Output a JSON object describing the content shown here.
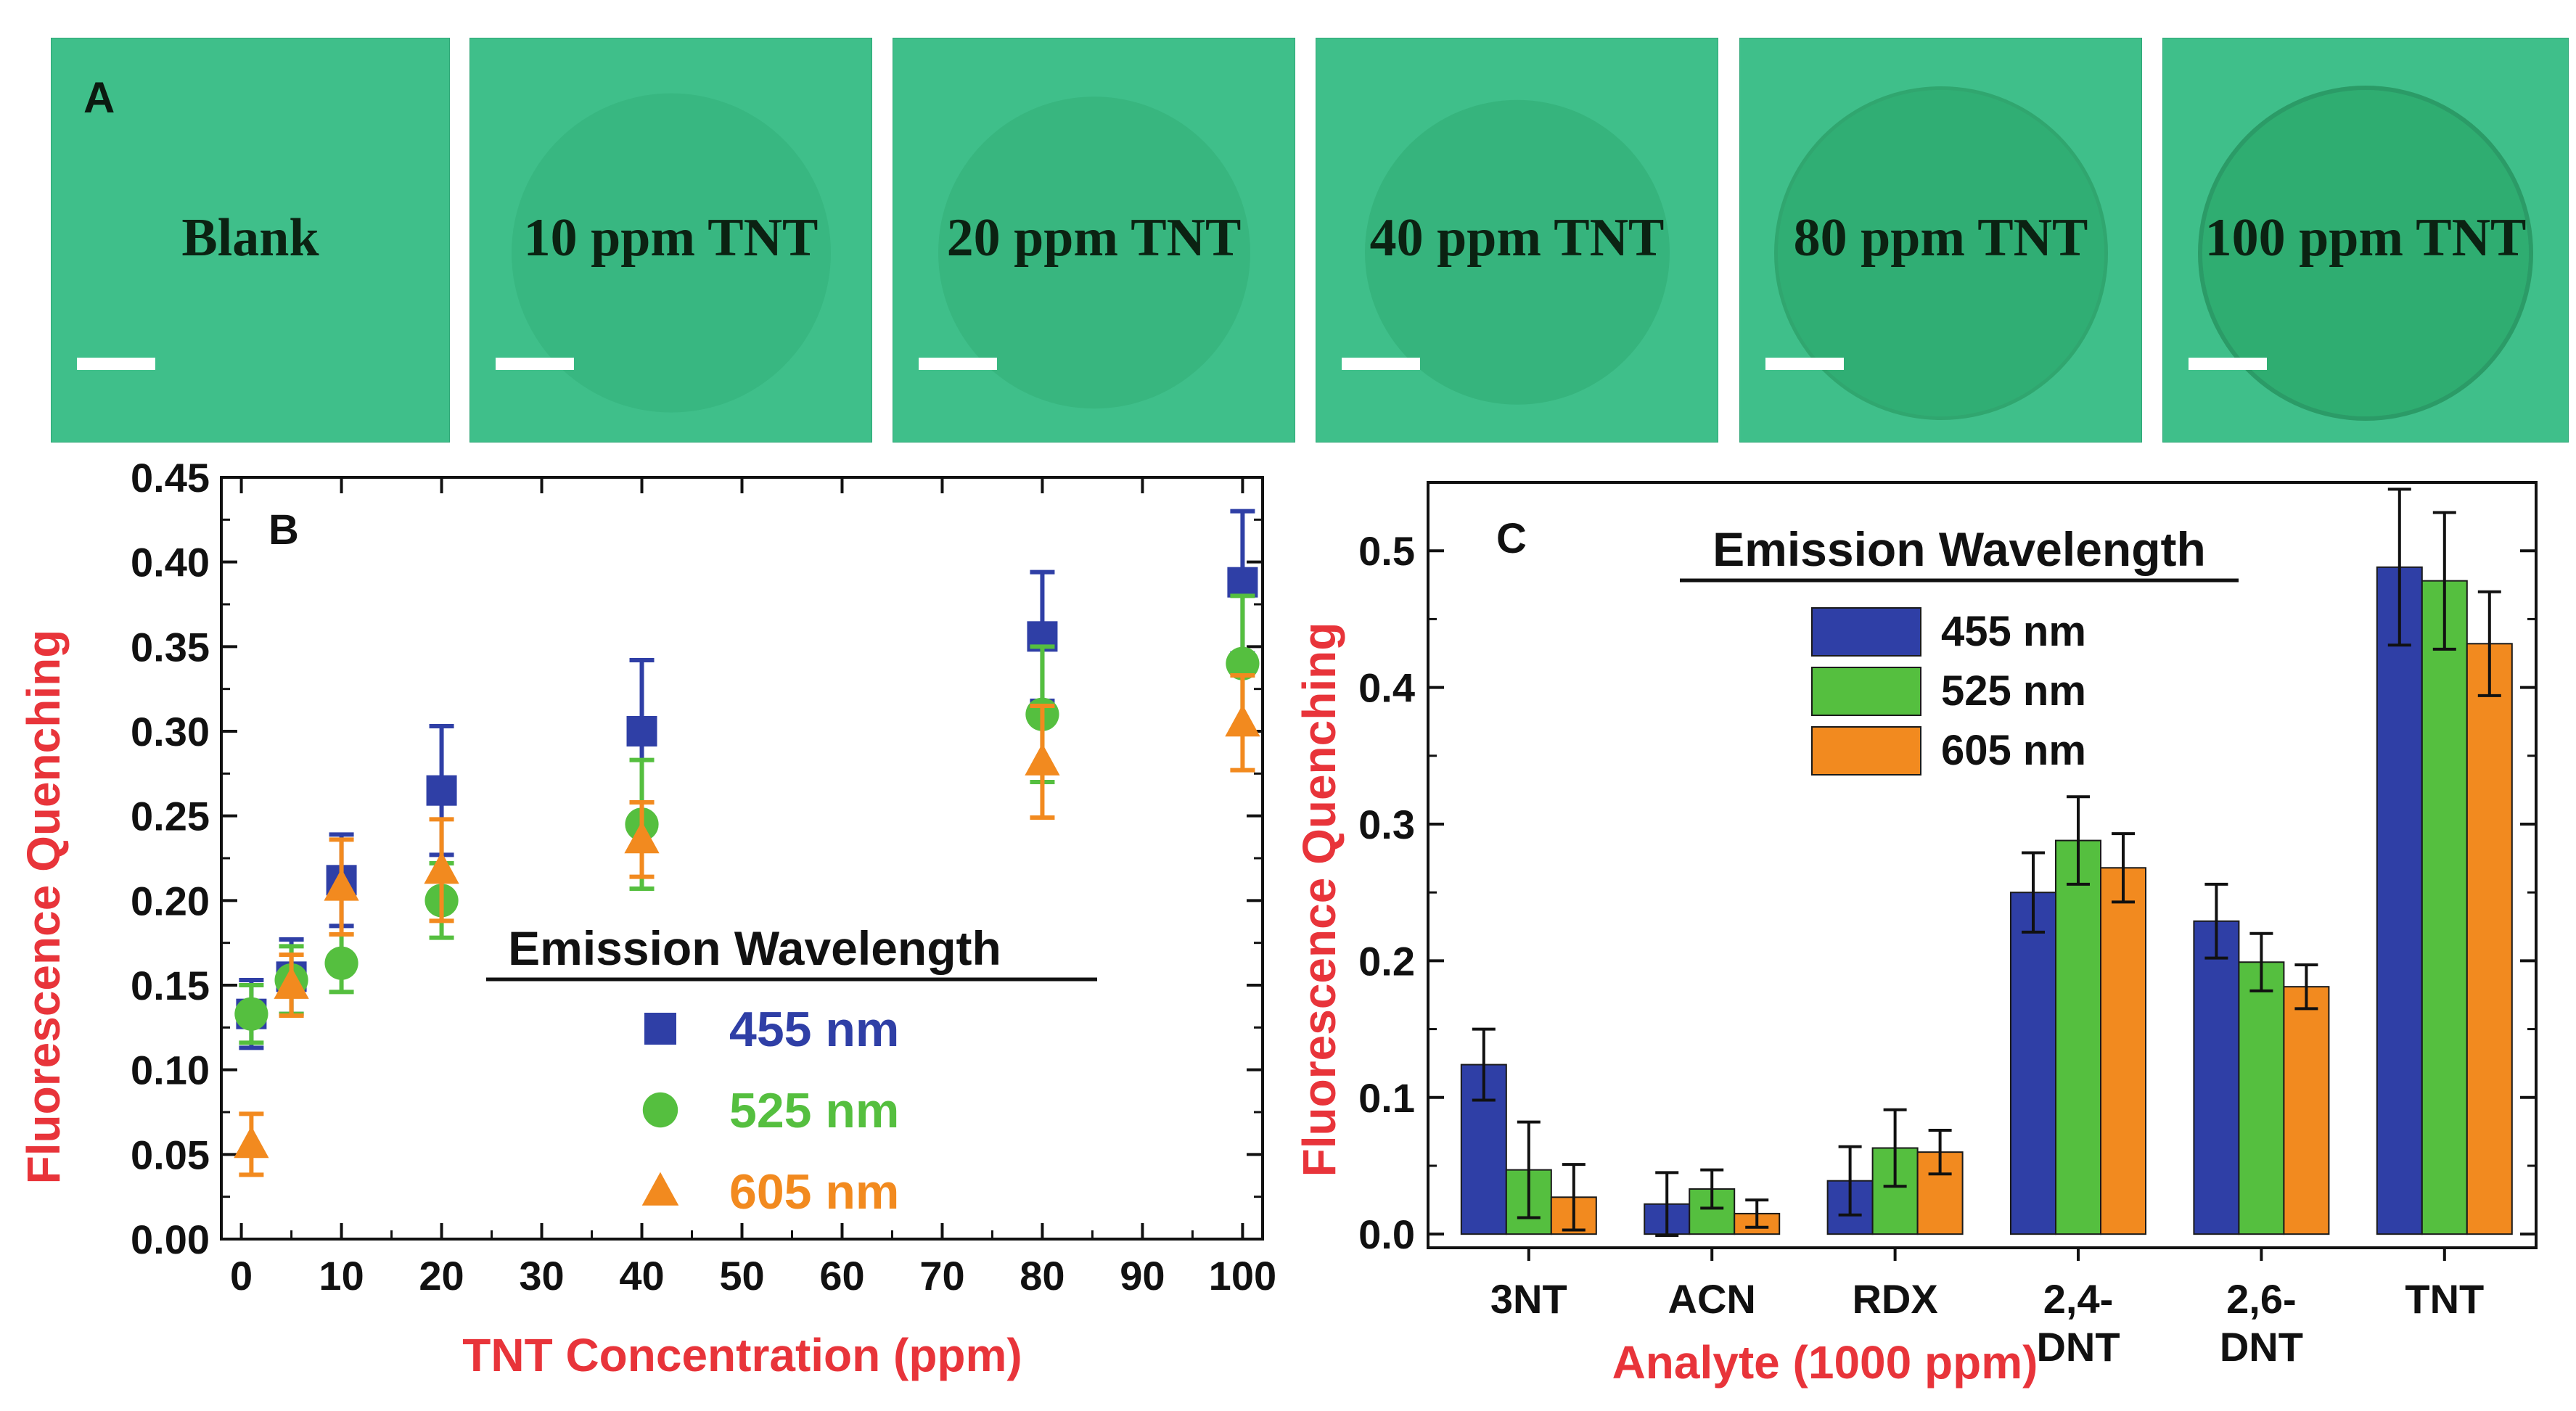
{
  "panel_a": {
    "letter": "A",
    "tiles": [
      {
        "label": "Blank"
      },
      {
        "label": "10 ppm TNT"
      },
      {
        "label": "20 ppm TNT"
      },
      {
        "label": "40 ppm TNT"
      },
      {
        "label": "80 ppm TNT"
      },
      {
        "label": "100 ppm TNT"
      }
    ],
    "colors": {
      "tile": "#3fbf8a",
      "spot": "#2aa86a"
    }
  },
  "chart_data": [
    {
      "type": "scatter",
      "panel": "B",
      "xlabel": "TNT Concentration (ppm)",
      "ylabel": "Fluorescence Quenching",
      "xlim": [
        -2,
        102
      ],
      "ylim": [
        0,
        0.45
      ],
      "x_ticks": [
        0,
        10,
        20,
        30,
        40,
        50,
        60,
        70,
        80,
        90,
        100
      ],
      "y_ticks": [
        0.0,
        0.05,
        0.1,
        0.15,
        0.2,
        0.25,
        0.3,
        0.35,
        0.4,
        0.45
      ],
      "grid": false,
      "legend": {
        "title": "Emission Wavelength",
        "placement": "center-right"
      },
      "x": [
        1,
        5,
        10,
        20,
        40,
        80,
        100
      ],
      "series": [
        {
          "name": "455 nm",
          "marker": "square",
          "color": "#2f3fa6",
          "values": [
            0.133,
            0.155,
            0.212,
            0.265,
            0.3,
            0.356,
            0.388
          ],
          "errors": [
            0.02,
            0.022,
            0.027,
            0.038,
            0.042,
            0.038,
            0.042
          ]
        },
        {
          "name": "525 nm",
          "marker": "circle",
          "color": "#55bf3f",
          "values": [
            0.133,
            0.153,
            0.163,
            0.2,
            0.245,
            0.31,
            0.34
          ],
          "errors": [
            0.017,
            0.02,
            0.017,
            0.022,
            0.038,
            0.04,
            0.04
          ]
        },
        {
          "name": "605 nm",
          "marker": "triangle",
          "color": "#f28a1f",
          "values": [
            0.056,
            0.15,
            0.208,
            0.218,
            0.236,
            0.282,
            0.305
          ],
          "errors": [
            0.018,
            0.018,
            0.028,
            0.03,
            0.022,
            0.033,
            0.028
          ]
        }
      ]
    },
    {
      "type": "bar",
      "panel": "C",
      "xlabel": "Analyte (1000 ppm)",
      "ylabel": "Fluorescence Quenching",
      "ylim": [
        -0.01,
        0.55
      ],
      "y_ticks": [
        0.0,
        0.1,
        0.2,
        0.3,
        0.4,
        0.5
      ],
      "grid": false,
      "legend": {
        "title": "Emission Wavelength",
        "placement": "top-center"
      },
      "categories": [
        "3NT",
        "ACN",
        "RDX",
        "2,4-\nDNT",
        "2,6-\nDNT",
        "TNT"
      ],
      "series": [
        {
          "name": "455 nm",
          "color": "#2f3fa6",
          "values": [
            0.124,
            0.022,
            0.039,
            0.25,
            0.229,
            0.488
          ],
          "errors": [
            0.026,
            0.023,
            0.025,
            0.029,
            0.027,
            0.057
          ]
        },
        {
          "name": "525 nm",
          "color": "#55bf3f",
          "values": [
            0.047,
            0.033,
            0.063,
            0.288,
            0.199,
            0.478
          ],
          "errors": [
            0.035,
            0.014,
            0.028,
            0.032,
            0.021,
            0.05
          ]
        },
        {
          "name": "605 nm",
          "color": "#f28a1f",
          "values": [
            0.027,
            0.015,
            0.06,
            0.268,
            0.181,
            0.432
          ],
          "errors": [
            0.024,
            0.01,
            0.016,
            0.025,
            0.016,
            0.038
          ]
        }
      ]
    }
  ]
}
